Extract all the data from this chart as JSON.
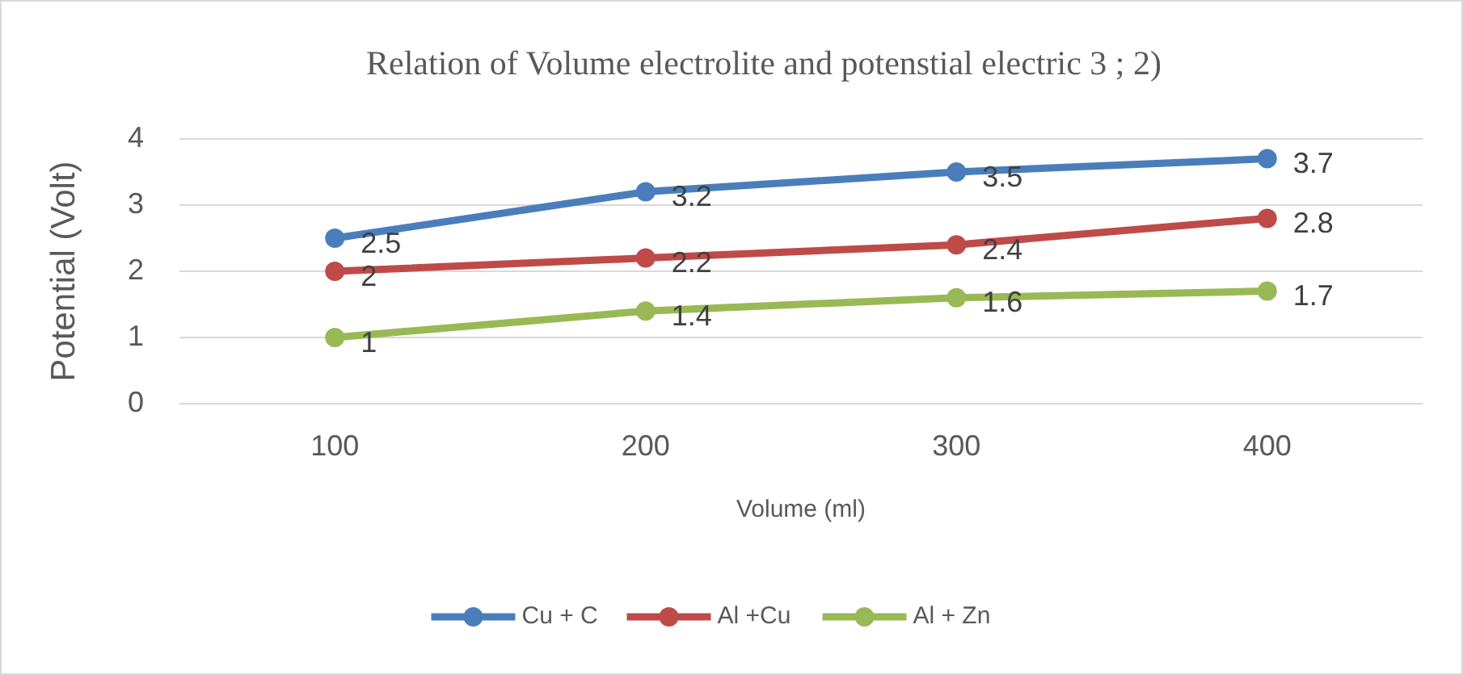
{
  "chart_data": {
    "type": "line",
    "title": "Relation of Volume electrolite and potenstial electric 3 ; 2)",
    "xlabel": "Volume (ml)",
    "ylabel": "Potential  (Volt)",
    "categories": [
      "100",
      "200",
      "300",
      "400"
    ],
    "ylim": [
      0,
      4
    ],
    "yticks": [
      0,
      1,
      2,
      3,
      4
    ],
    "grid": "y",
    "legend": "bottom",
    "marker": "circle",
    "line_style": "solid",
    "data_labels": true,
    "series": [
      {
        "name": "Cu + C",
        "color": "#4a7ebb",
        "values": [
          2.5,
          3.2,
          3.5,
          3.7
        ]
      },
      {
        "name": "Al +Cu",
        "color": "#be4b48",
        "values": [
          2,
          2.2,
          2.4,
          2.8
        ]
      },
      {
        "name": "Al + Zn",
        "color": "#98b954",
        "values": [
          1,
          1.4,
          1.6,
          1.7
        ]
      }
    ]
  }
}
